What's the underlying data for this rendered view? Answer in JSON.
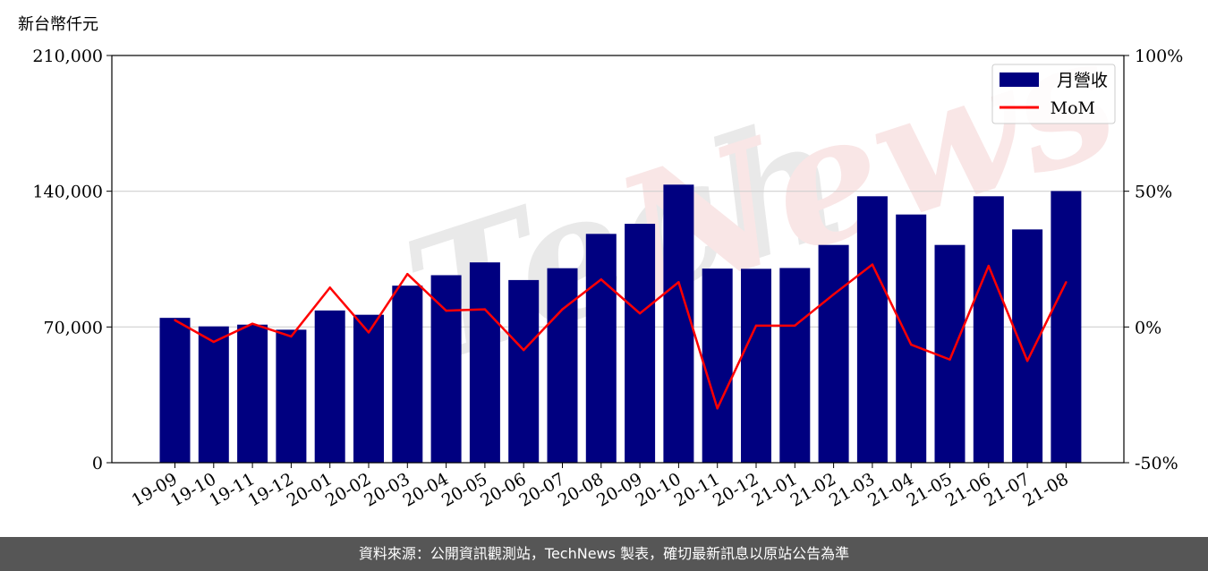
{
  "chart_data": {
    "type": "bar",
    "unit_label": "新台幣仟元",
    "categories": [
      "19-09",
      "19-10",
      "19-11",
      "19-12",
      "20-01",
      "20-02",
      "20-03",
      "20-04",
      "20-05",
      "20-06",
      "20-07",
      "20-08",
      "20-09",
      "20-10",
      "20-11",
      "20-12",
      "21-01",
      "21-02",
      "21-03",
      "21-04",
      "21-05",
      "21-06",
      "21-07",
      "21-08"
    ],
    "series": [
      {
        "name": "月營收",
        "type": "bar",
        "color": "#000080",
        "axis": "left",
        "values": [
          74700,
          70300,
          71200,
          68600,
          78500,
          76300,
          91300,
          96700,
          103300,
          94200,
          100300,
          118000,
          123200,
          143400,
          100100,
          100000,
          100400,
          112300,
          137400,
          128000,
          112300,
          137400,
          120300,
          140100
        ]
      },
      {
        "name": "MoM",
        "type": "line",
        "color": "#ff0000",
        "axis": "right",
        "values": [
          2.5,
          -5.5,
          1.2,
          -3.5,
          14.5,
          -2.0,
          19.5,
          6.0,
          6.5,
          -8.5,
          6.5,
          17.5,
          5.0,
          16.5,
          -30.0,
          0.5,
          0.5,
          12.0,
          23.0,
          -6.5,
          -12.0,
          22.5,
          -12.5,
          16.5
        ]
      }
    ],
    "y_left": {
      "ticks": [
        "0",
        "70,000",
        "140,000",
        "210,000"
      ],
      "ylim": [
        0,
        210000
      ]
    },
    "y_right": {
      "ticks": [
        "-50%",
        "0%",
        "50%",
        "100%"
      ],
      "ylim": [
        -50,
        100
      ]
    },
    "grid": "horizontal",
    "legend_position": "top-right",
    "watermark": "TechNews"
  },
  "footer": {
    "source_text": "資料來源：公開資訊觀測站，TechNews 製表，確切最新訊息以原站公告為準"
  }
}
